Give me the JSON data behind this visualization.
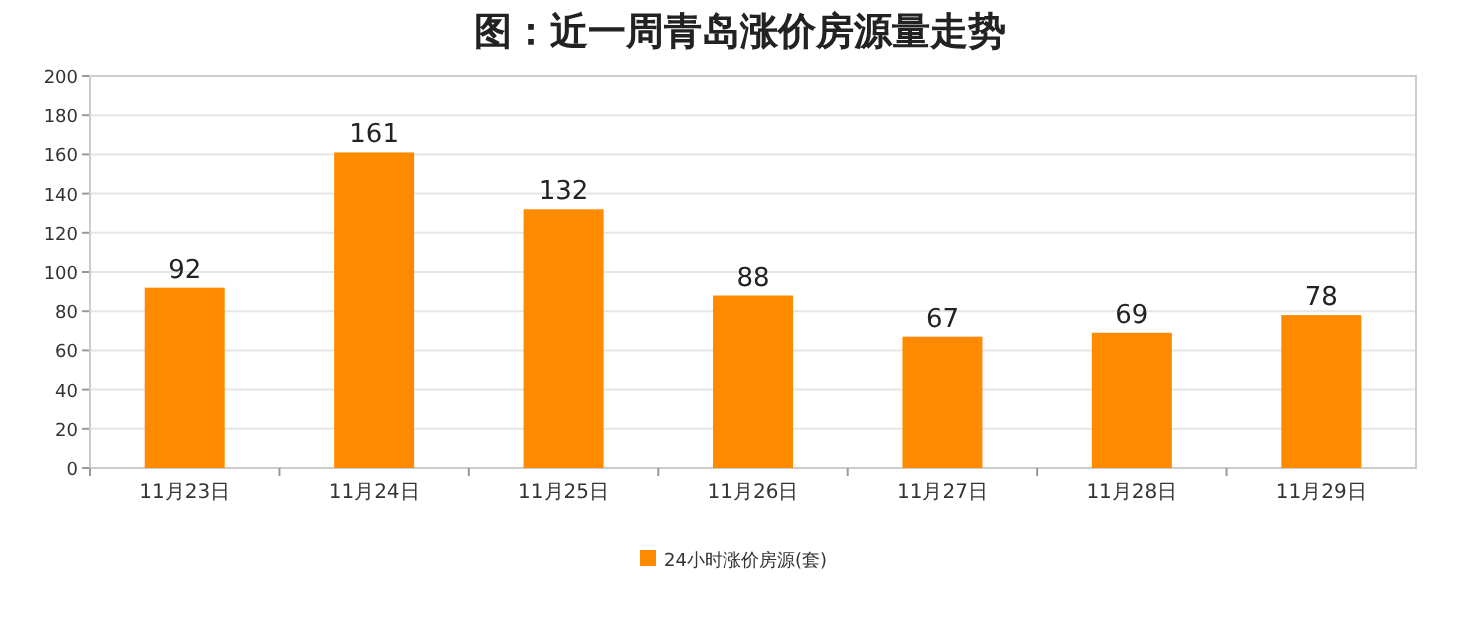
{
  "chart_data": {
    "type": "bar",
    "title": "图：近一周青岛涨价房源量走势",
    "categories": [
      "11月23日",
      "11月24日",
      "11月25日",
      "11月26日",
      "11月27日",
      "11月28日",
      "11月29日"
    ],
    "series": [
      {
        "name": "24小时涨价房源(套)",
        "color": "#ff8a00",
        "values": [
          92,
          161,
          132,
          88,
          67,
          69,
          78
        ]
      }
    ],
    "ylim": [
      0,
      200
    ],
    "yticks": [
      0,
      20,
      40,
      60,
      80,
      100,
      120,
      140,
      160,
      180,
      200
    ],
    "grid": "y",
    "legend": "bottom",
    "data_labels": true
  }
}
